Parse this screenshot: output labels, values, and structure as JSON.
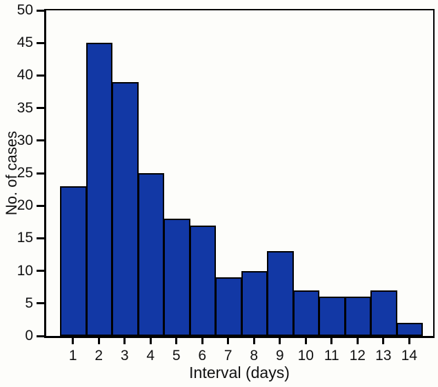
{
  "chart_data": {
    "type": "bar",
    "categories": [
      "1",
      "2",
      "3",
      "4",
      "5",
      "6",
      "7",
      "8",
      "9",
      "10",
      "11",
      "12",
      "13",
      "14"
    ],
    "values": [
      23,
      45,
      39,
      25,
      18,
      17,
      9,
      10,
      13,
      7,
      6,
      6,
      7,
      2
    ],
    "title": "",
    "xlabel": "Interval (days)",
    "ylabel": "No. of cases",
    "ylim": [
      0,
      50
    ],
    "yticks": [
      0,
      5,
      10,
      15,
      20,
      25,
      30,
      35,
      40,
      45,
      50
    ],
    "grid": false,
    "legend": "none",
    "colors": {
      "bar_fill": "#1238a5",
      "bar_border": "#000000",
      "axis": "#000000",
      "text": "#111111",
      "background": "#fdfdfa"
    }
  }
}
